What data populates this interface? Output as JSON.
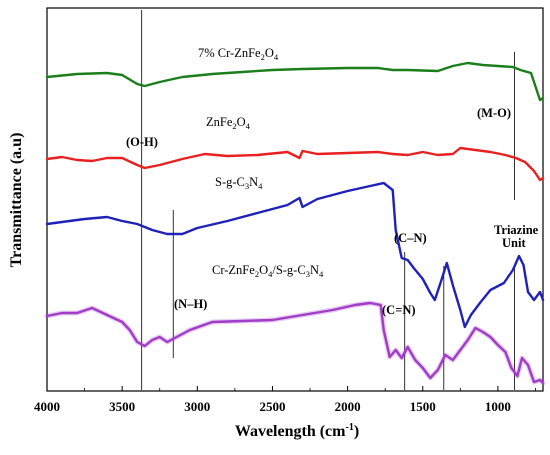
{
  "chart_data": {
    "type": "line",
    "xlabel": "Wavelength (cm⁻¹)",
    "xlabel_main": "Wavelength (cm",
    "xlabel_sup": "-1",
    "xlabel_close": ")",
    "ylabel": "Transmittance (a.u)",
    "xlim": [
      4000,
      700
    ],
    "x_reversed": true,
    "y_ticks_labeled": false,
    "xticks": [
      "4000",
      "3500",
      "3000",
      "2500",
      "2000",
      "1500",
      "1000"
    ],
    "xtick_values": [
      4000,
      3500,
      3000,
      2500,
      2000,
      1500,
      1000
    ],
    "series": [
      {
        "name": "7% Cr-ZnFe2O4",
        "label_parts": [
          {
            "t": "7% Cr-ZnFe"
          },
          {
            "t": "2",
            "sub": true
          },
          {
            "t": "O"
          },
          {
            "t": "4",
            "sub": true
          }
        ],
        "color": "#1a7f1a",
        "points": [
          [
            4000,
            77
          ],
          [
            3800,
            74
          ],
          [
            3600,
            73
          ],
          [
            3500,
            75
          ],
          [
            3400,
            84
          ],
          [
            3350,
            86
          ],
          [
            3250,
            82
          ],
          [
            3100,
            77
          ],
          [
            2900,
            74
          ],
          [
            2700,
            72
          ],
          [
            2500,
            70
          ],
          [
            2300,
            69
          ],
          [
            2000,
            68
          ],
          [
            1800,
            68
          ],
          [
            1700,
            70
          ],
          [
            1600,
            70
          ],
          [
            1400,
            71
          ],
          [
            1300,
            66
          ],
          [
            1200,
            63
          ],
          [
            1100,
            65
          ],
          [
            1000,
            66
          ],
          [
            900,
            67
          ],
          [
            850,
            70
          ],
          [
            780,
            73
          ],
          [
            720,
            100
          ],
          [
            700,
            98
          ]
        ]
      },
      {
        "name": "ZnFe2O4",
        "label_parts": [
          {
            "t": "ZnFe"
          },
          {
            "t": "2",
            "sub": true
          },
          {
            "t": "O"
          },
          {
            "t": "4",
            "sub": true
          }
        ],
        "color": "#e82020",
        "points": [
          [
            4000,
            159
          ],
          [
            3900,
            157
          ],
          [
            3800,
            160
          ],
          [
            3700,
            161
          ],
          [
            3600,
            158
          ],
          [
            3500,
            158
          ],
          [
            3400,
            165
          ],
          [
            3350,
            168
          ],
          [
            3250,
            165
          ],
          [
            3100,
            159
          ],
          [
            2950,
            154
          ],
          [
            2800,
            156
          ],
          [
            2600,
            155
          ],
          [
            2400,
            152
          ],
          [
            2320,
            158
          ],
          [
            2300,
            151
          ],
          [
            2200,
            154
          ],
          [
            2000,
            153
          ],
          [
            1800,
            152
          ],
          [
            1700,
            154
          ],
          [
            1600,
            155
          ],
          [
            1500,
            152
          ],
          [
            1400,
            155
          ],
          [
            1300,
            154
          ],
          [
            1250,
            148
          ],
          [
            1150,
            150
          ],
          [
            1050,
            152
          ],
          [
            950,
            155
          ],
          [
            880,
            158
          ],
          [
            820,
            162
          ],
          [
            760,
            171
          ],
          [
            720,
            180
          ],
          [
            700,
            178
          ]
        ]
      },
      {
        "name": "S-g-C3N4",
        "label_parts": [
          {
            "t": "S-g-C"
          },
          {
            "t": "3",
            "sub": true
          },
          {
            "t": "N"
          },
          {
            "t": "4",
            "sub": true
          }
        ],
        "color": "#1e22b8",
        "points": [
          [
            4000,
            224
          ],
          [
            3900,
            222
          ],
          [
            3750,
            219
          ],
          [
            3600,
            217
          ],
          [
            3500,
            221
          ],
          [
            3400,
            224
          ],
          [
            3300,
            230
          ],
          [
            3200,
            234
          ],
          [
            3100,
            234
          ],
          [
            3000,
            228
          ],
          [
            2800,
            221
          ],
          [
            2600,
            213
          ],
          [
            2400,
            205
          ],
          [
            2320,
            198
          ],
          [
            2300,
            207
          ],
          [
            2200,
            199
          ],
          [
            2000,
            191
          ],
          [
            1850,
            186
          ],
          [
            1760,
            183
          ],
          [
            1700,
            190
          ],
          [
            1680,
            230
          ],
          [
            1640,
            258
          ],
          [
            1600,
            260
          ],
          [
            1560,
            268
          ],
          [
            1500,
            279
          ],
          [
            1450,
            293
          ],
          [
            1420,
            300
          ],
          [
            1380,
            282
          ],
          [
            1340,
            263
          ],
          [
            1300,
            285
          ],
          [
            1250,
            310
          ],
          [
            1220,
            327
          ],
          [
            1180,
            315
          ],
          [
            1120,
            303
          ],
          [
            1050,
            290
          ],
          [
            960,
            283
          ],
          [
            900,
            270
          ],
          [
            860,
            256
          ],
          [
            830,
            265
          ],
          [
            800,
            292
          ],
          [
            760,
            300
          ],
          [
            720,
            292
          ],
          [
            700,
            300
          ]
        ]
      },
      {
        "name": "Cr-ZnFe2O4/S-g-C3N4",
        "label_parts": [
          {
            "t": "Cr-ZnFe"
          },
          {
            "t": "2",
            "sub": true
          },
          {
            "t": "O"
          },
          {
            "t": "4",
            "sub": true
          },
          {
            "t": "/S-g-C"
          },
          {
            "t": "3",
            "sub": true
          },
          {
            "t": "N"
          },
          {
            "t": "4",
            "sub": true
          }
        ],
        "color": "#a13cc8",
        "points": [
          [
            4000,
            316
          ],
          [
            3900,
            313
          ],
          [
            3800,
            313
          ],
          [
            3700,
            308
          ],
          [
            3600,
            315
          ],
          [
            3500,
            322
          ],
          [
            3450,
            330
          ],
          [
            3400,
            342
          ],
          [
            3350,
            346
          ],
          [
            3300,
            340
          ],
          [
            3250,
            337
          ],
          [
            3200,
            342
          ],
          [
            3150,
            338
          ],
          [
            3050,
            330
          ],
          [
            2900,
            322
          ],
          [
            2700,
            321
          ],
          [
            2500,
            320
          ],
          [
            2300,
            315
          ],
          [
            2100,
            310
          ],
          [
            1950,
            305
          ],
          [
            1850,
            303
          ],
          [
            1780,
            305
          ],
          [
            1760,
            330
          ],
          [
            1720,
            357
          ],
          [
            1680,
            350
          ],
          [
            1640,
            358
          ],
          [
            1600,
            347
          ],
          [
            1550,
            360
          ],
          [
            1500,
            368
          ],
          [
            1450,
            378
          ],
          [
            1400,
            370
          ],
          [
            1350,
            355
          ],
          [
            1300,
            360
          ],
          [
            1250,
            350
          ],
          [
            1200,
            340
          ],
          [
            1150,
            328
          ],
          [
            1100,
            332
          ],
          [
            1050,
            337
          ],
          [
            1000,
            345
          ],
          [
            950,
            352
          ],
          [
            910,
            368
          ],
          [
            870,
            376
          ],
          [
            840,
            358
          ],
          [
            800,
            365
          ],
          [
            760,
            382
          ],
          [
            720,
            380
          ],
          [
            700,
            383
          ]
        ]
      }
    ],
    "vlines": [
      {
        "x": 3370,
        "top": 10,
        "bottom": 390
      },
      {
        "x": 3160,
        "top": 210,
        "bottom": 358
      },
      {
        "x": 1620,
        "top": 252,
        "bottom": 390
      },
      {
        "x": 1360,
        "top": 266,
        "bottom": 390
      },
      {
        "x": 890,
        "top": 52,
        "bottom": 200
      },
      {
        "x": 890,
        "top": 268,
        "bottom": 390
      }
    ],
    "annotations": [
      {
        "text": "(O-H)",
        "bold": true
      },
      {
        "text": "(M-O)",
        "bold": true
      },
      {
        "text": "(C–N)",
        "bold": true
      },
      {
        "text": "Triazine",
        "bold": true
      },
      {
        "text": "Unit",
        "bold": true
      },
      {
        "text": "(N–H)",
        "bold": true
      },
      {
        "text": "(C=N)",
        "bold": true
      }
    ]
  }
}
